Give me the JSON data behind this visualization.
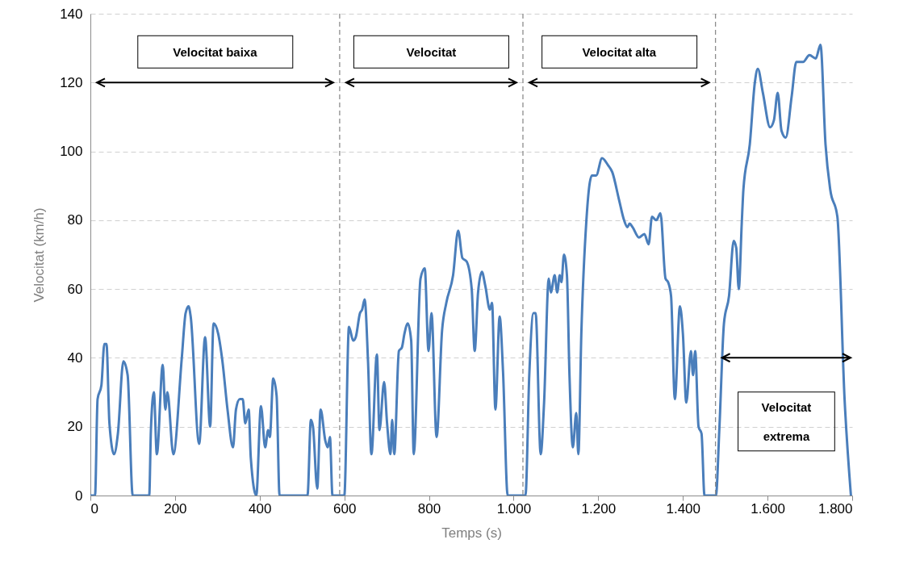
{
  "chart_data": {
    "type": "line",
    "xlabel": "Temps (s)",
    "ylabel": "Velocitat (km/h)",
    "x": [
      0,
      11,
      17,
      26,
      33,
      38,
      45,
      56,
      65,
      78,
      88,
      100,
      139,
      143,
      150,
      157,
      171,
      177,
      182,
      196,
      216,
      225,
      232,
      237,
      257,
      271,
      283,
      291,
      302,
      312,
      324,
      337,
      344,
      353,
      360,
      366,
      374,
      379,
      392,
      403,
      413,
      420,
      424,
      432,
      440,
      447,
      513,
      521,
      526,
      536,
      544,
      555,
      561,
      566,
      572,
      600,
      611,
      621,
      627,
      637,
      642,
      648,
      656,
      664,
      677,
      683,
      694,
      701,
      709,
      713,
      718,
      729,
      736,
      742,
      750,
      758,
      764,
      780,
      790,
      799,
      806,
      818,
      831,
      841,
      857,
      869,
      879,
      889,
      901,
      908,
      916,
      925,
      933,
      944,
      949,
      957,
      967,
      975,
      986,
      1019,
      1028,
      1037,
      1047,
      1052,
      1064,
      1072,
      1083,
      1088,
      1097,
      1103,
      1109,
      1113,
      1119,
      1126,
      1132,
      1140,
      1148,
      1153,
      1160,
      1172,
      1185,
      1195,
      1209,
      1223,
      1233,
      1249,
      1261,
      1269,
      1274,
      1281,
      1296,
      1309,
      1319,
      1327,
      1337,
      1347,
      1359,
      1365,
      1372,
      1381,
      1393,
      1400,
      1408,
      1419,
      1424,
      1429,
      1437,
      1444,
      1451,
      1478,
      1486,
      1497,
      1509,
      1520,
      1526,
      1532,
      1539,
      1543,
      1558,
      1570,
      1577,
      1589,
      1606,
      1615,
      1624,
      1633,
      1643,
      1657,
      1668,
      1684,
      1699,
      1714,
      1725,
      1737,
      1748,
      1765,
      1782,
      1797
    ],
    "series": [
      {
        "color": "#4a7ebb",
        "values": [
          0,
          0,
          28,
          32,
          44,
          44,
          21,
          12,
          18,
          39,
          35,
          0,
          0,
          19,
          30,
          12,
          38,
          25,
          30,
          12,
          40,
          53,
          55,
          52,
          15,
          46,
          20,
          50,
          47,
          39,
          25,
          14,
          25,
          28,
          28,
          21,
          25,
          11,
          0,
          26,
          14,
          19,
          17,
          34,
          29,
          0,
          0,
          22,
          20,
          2,
          25,
          16,
          14,
          17,
          0,
          0,
          49,
          45,
          46,
          53,
          54,
          57,
          39,
          12,
          41,
          19,
          33,
          21,
          12,
          22,
          12,
          42,
          43,
          47,
          50,
          45,
          12,
          63,
          66,
          42,
          53,
          17,
          48,
          56,
          64,
          77,
          69,
          68,
          60,
          42,
          59,
          65,
          61,
          54,
          56,
          25,
          52,
          36,
          0,
          0,
          0,
          35,
          53,
          53,
          12,
          27,
          63,
          59,
          64,
          59,
          64,
          62,
          70,
          64,
          35,
          14,
          24,
          12,
          47,
          80,
          93,
          93,
          98,
          96,
          94,
          86,
          80,
          78,
          79,
          78,
          75,
          76,
          73,
          81,
          80,
          82,
          63,
          62,
          58,
          28,
          55,
          47,
          27,
          42,
          35,
          42,
          20,
          18,
          0,
          0,
          19,
          50,
          58,
          74,
          72,
          60,
          79,
          89,
          102,
          120,
          124,
          117,
          107,
          109,
          117,
          106,
          104,
          116,
          126,
          126,
          128,
          127,
          131,
          102,
          89,
          81,
          28,
          0
        ]
      }
    ],
    "xlim": [
      0,
      1800
    ],
    "ylim": [
      0,
      140
    ],
    "xticks": [
      0,
      200,
      400,
      600,
      800,
      {
        "value": 1000,
        "label": "1.000"
      },
      {
        "value": 1200,
        "label": "1.200"
      },
      {
        "value": 1400,
        "label": "1.400"
      },
      {
        "value": 1600,
        "label": "1.600"
      },
      {
        "value": 1800,
        "label": "1.800"
      }
    ],
    "yticks": [
      0,
      20,
      40,
      60,
      80,
      100,
      120,
      140
    ],
    "grid": "y",
    "marker": "none",
    "line_style": "solid",
    "ref_lines": [
      {
        "axis": "x",
        "value": 589,
        "color": "#8c8c8c",
        "line_style": "dashed"
      },
      {
        "axis": "x",
        "value": 1022,
        "color": "#8c8c8c",
        "line_style": "dashed"
      },
      {
        "axis": "x",
        "value": 1477,
        "color": "#8c8c8c",
        "line_style": "dashed"
      }
    ],
    "annotations": [
      "Velocitat baixa",
      "Velocitat",
      "Velocitat alta",
      "Velocitat extrema"
    ]
  }
}
